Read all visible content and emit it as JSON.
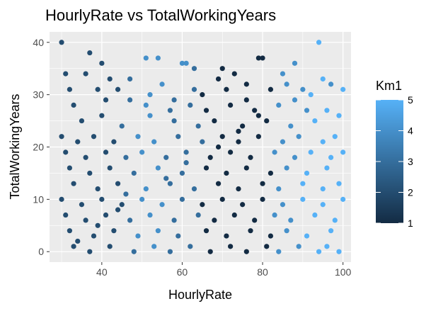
{
  "chart_data": {
    "type": "scatter",
    "title": "HourlyRate vs TotalWorkingYears",
    "xlabel": "HourlyRate",
    "ylabel": "TotalWorkingYears",
    "xlim": [
      27,
      102
    ],
    "ylim": [
      -2,
      42
    ],
    "x_ticks": [
      40,
      60,
      80,
      100
    ],
    "y_ticks": [
      0,
      10,
      20,
      30,
      40
    ],
    "x_tick_labels": [
      "40",
      "60",
      "80",
      "100"
    ],
    "y_tick_labels": [
      "0",
      "10",
      "20",
      "30",
      "40"
    ],
    "grid": true,
    "panel_background": "#ebebeb",
    "legend": {
      "title": "Km1",
      "position": "right",
      "type": "continuous",
      "range": [
        1,
        5
      ],
      "breaks": [
        1,
        2,
        3,
        4,
        5
      ],
      "labels": [
        "1",
        "2",
        "3",
        "4",
        "5"
      ],
      "low_color": "#132b43",
      "high_color": "#56b1f7"
    },
    "points": [
      [
        30,
        40,
        2
      ],
      [
        94,
        40,
        5
      ],
      [
        37,
        38,
        2
      ],
      [
        79,
        37,
        1
      ],
      [
        51,
        37,
        4
      ],
      [
        54,
        37,
        4
      ],
      [
        80,
        37,
        1
      ],
      [
        31,
        34,
        2
      ],
      [
        36,
        34,
        2
      ],
      [
        42,
        33,
        2
      ],
      [
        70,
        35,
        1
      ],
      [
        73,
        34,
        1
      ],
      [
        88,
        36,
        4
      ],
      [
        61,
        36,
        4
      ],
      [
        60,
        36,
        4
      ],
      [
        32,
        31,
        2
      ],
      [
        39,
        31,
        2
      ],
      [
        44,
        31,
        2
      ],
      [
        55,
        32,
        4
      ],
      [
        63,
        31,
        3
      ],
      [
        71,
        31,
        1
      ],
      [
        76,
        32,
        1
      ],
      [
        82,
        31,
        1
      ],
      [
        86,
        32,
        4
      ],
      [
        90,
        31,
        4
      ],
      [
        97,
        32,
        4
      ],
      [
        33,
        28,
        2
      ],
      [
        41,
        29,
        2
      ],
      [
        47,
        29,
        3
      ],
      [
        51,
        28,
        4
      ],
      [
        57,
        27,
        3
      ],
      [
        62,
        28,
        3
      ],
      [
        66,
        27,
        1
      ],
      [
        72,
        28,
        1
      ],
      [
        78,
        27,
        1
      ],
      [
        84,
        28,
        4
      ],
      [
        91,
        27,
        4
      ],
      [
        96,
        27,
        5
      ],
      [
        35,
        25,
        2
      ],
      [
        40,
        26,
        2
      ],
      [
        45,
        24,
        3
      ],
      [
        52,
        26,
        4
      ],
      [
        58,
        25,
        3
      ],
      [
        64,
        24,
        3
      ],
      [
        68,
        25,
        1
      ],
      [
        75,
        24,
        1
      ],
      [
        81,
        25,
        1
      ],
      [
        87,
        24,
        4
      ],
      [
        93,
        25,
        5
      ],
      [
        99,
        26,
        5
      ],
      [
        30,
        22,
        2
      ],
      [
        34,
        21,
        2
      ],
      [
        38,
        22,
        2
      ],
      [
        43,
        21,
        2
      ],
      [
        49,
        22,
        4
      ],
      [
        53,
        21,
        4
      ],
      [
        59,
        22,
        3
      ],
      [
        65,
        21,
        3
      ],
      [
        70,
        22,
        1
      ],
      [
        74,
        21,
        1
      ],
      [
        79,
        22,
        1
      ],
      [
        85,
        21,
        4
      ],
      [
        89,
        22,
        4
      ],
      [
        95,
        21,
        5
      ],
      [
        98,
        22,
        5
      ],
      [
        31,
        19,
        2
      ],
      [
        36,
        18,
        2
      ],
      [
        41,
        19,
        2
      ],
      [
        46,
        18,
        3
      ],
      [
        50,
        19,
        4
      ],
      [
        56,
        18,
        3
      ],
      [
        61,
        19,
        3
      ],
      [
        67,
        18,
        1
      ],
      [
        72,
        19,
        1
      ],
      [
        77,
        18,
        1
      ],
      [
        83,
        19,
        4
      ],
      [
        88,
        18,
        4
      ],
      [
        92,
        19,
        5
      ],
      [
        97,
        18,
        5
      ],
      [
        100,
        19,
        5
      ],
      [
        32,
        16,
        2
      ],
      [
        37,
        15,
        2
      ],
      [
        42,
        16,
        2
      ],
      [
        48,
        15,
        3
      ],
      [
        54,
        16,
        4
      ],
      [
        60,
        15,
        3
      ],
      [
        66,
        16,
        1
      ],
      [
        71,
        15,
        1
      ],
      [
        76,
        16,
        1
      ],
      [
        82,
        15,
        1
      ],
      [
        86,
        16,
        4
      ],
      [
        91,
        15,
        5
      ],
      [
        96,
        16,
        5
      ],
      [
        33,
        13,
        2
      ],
      [
        39,
        12,
        2
      ],
      [
        44,
        13,
        2
      ],
      [
        51,
        12,
        4
      ],
      [
        57,
        13,
        3
      ],
      [
        63,
        12,
        3
      ],
      [
        69,
        13,
        1
      ],
      [
        74,
        12,
        1
      ],
      [
        80,
        13,
        1
      ],
      [
        84,
        12,
        4
      ],
      [
        90,
        13,
        5
      ],
      [
        95,
        12,
        5
      ],
      [
        99,
        13,
        5
      ],
      [
        30,
        10,
        2
      ],
      [
        35,
        9,
        2
      ],
      [
        40,
        10,
        2
      ],
      [
        45,
        9,
        2
      ],
      [
        50,
        10,
        4
      ],
      [
        55,
        9,
        4
      ],
      [
        60,
        10,
        3
      ],
      [
        65,
        9,
        1
      ],
      [
        70,
        10,
        1
      ],
      [
        75,
        9,
        1
      ],
      [
        80,
        10,
        1
      ],
      [
        85,
        9,
        4
      ],
      [
        90,
        10,
        5
      ],
      [
        95,
        9,
        5
      ],
      [
        100,
        10,
        5
      ],
      [
        31,
        7,
        2
      ],
      [
        36,
        6,
        2
      ],
      [
        41,
        7,
        2
      ],
      [
        47,
        6,
        3
      ],
      [
        52,
        7,
        4
      ],
      [
        58,
        6,
        3
      ],
      [
        64,
        7,
        3
      ],
      [
        68,
        6,
        1
      ],
      [
        73,
        7,
        1
      ],
      [
        78,
        6,
        1
      ],
      [
        83,
        7,
        4
      ],
      [
        87,
        6,
        4
      ],
      [
        93,
        7,
        5
      ],
      [
        98,
        6,
        5
      ],
      [
        32,
        4,
        2
      ],
      [
        38,
        3,
        2
      ],
      [
        43,
        4,
        2
      ],
      [
        49,
        3,
        4
      ],
      [
        54,
        4,
        4
      ],
      [
        59,
        3,
        3
      ],
      [
        66,
        4,
        1
      ],
      [
        71,
        3,
        1
      ],
      [
        77,
        4,
        1
      ],
      [
        82,
        3,
        1
      ],
      [
        86,
        4,
        4
      ],
      [
        91,
        3,
        5
      ],
      [
        97,
        4,
        5
      ],
      [
        33,
        1,
        2
      ],
      [
        37,
        0,
        2
      ],
      [
        42,
        1,
        2
      ],
      [
        48,
        0,
        3
      ],
      [
        53,
        1,
        4
      ],
      [
        57,
        0,
        3
      ],
      [
        62,
        1,
        3
      ],
      [
        67,
        0,
        1
      ],
      [
        72,
        1,
        1
      ],
      [
        76,
        0,
        1
      ],
      [
        81,
        1,
        1
      ],
      [
        84,
        0,
        4
      ],
      [
        89,
        1,
        4
      ],
      [
        94,
        0,
        5
      ],
      [
        96,
        1,
        5
      ],
      [
        99,
        0,
        5
      ],
      [
        34,
        2,
        2
      ],
      [
        39,
        5,
        2
      ],
      [
        44,
        8,
        2
      ],
      [
        46,
        11,
        3
      ],
      [
        56,
        14,
        3
      ],
      [
        61,
        17,
        3
      ],
      [
        69,
        20,
        1
      ],
      [
        74,
        23,
        1
      ],
      [
        79,
        26,
        1
      ],
      [
        88,
        29,
        4
      ],
      [
        92,
        30,
        5
      ],
      [
        95,
        33,
        5
      ],
      [
        65,
        30,
        1
      ],
      [
        58,
        29,
        3
      ],
      [
        52,
        30,
        4
      ],
      [
        47,
        33,
        3
      ],
      [
        85,
        34,
        4
      ],
      [
        76,
        29,
        1
      ],
      [
        40,
        36,
        2
      ],
      [
        100,
        31,
        5
      ],
      [
        63,
        35,
        3
      ],
      [
        69,
        33,
        1
      ]
    ]
  }
}
